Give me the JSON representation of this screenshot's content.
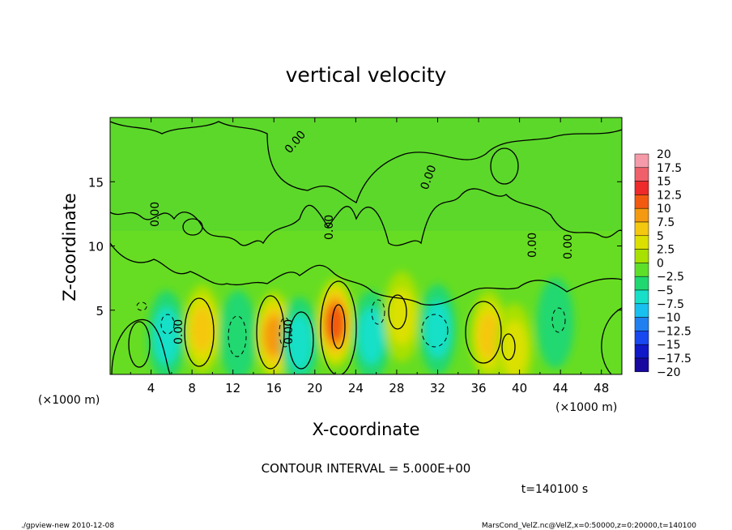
{
  "chart_data": {
    "type": "heatmap",
    "title": "vertical velocity",
    "xlabel": "X-coordinate",
    "ylabel": "Z-coordinate",
    "x_unit_left": "(×1000 m)",
    "x_unit_right": "(×1000 m)",
    "xlim": [
      0,
      50
    ],
    "ylim": [
      0,
      20
    ],
    "xticks": [
      "4",
      "8",
      "12",
      "16",
      "20",
      "24",
      "28",
      "32",
      "36",
      "40",
      "44",
      "48"
    ],
    "yticks": [
      "5",
      "10",
      "15"
    ],
    "contour_label": "0.00",
    "contour_interval_text": "CONTOUR INTERVAL = 5.000E+00",
    "time_text": "t=140100 s",
    "colorbar": {
      "labels": [
        "20",
        "17.5",
        "15",
        "12.5",
        "10",
        "7.5",
        "5",
        "2.5",
        "0",
        "−2.5",
        "−5",
        "−7.5",
        "−10",
        "−12.5",
        "−15",
        "−17.5",
        "−20"
      ],
      "colors": [
        "#f59aa8",
        "#f0606a",
        "#ee2a2a",
        "#f25a10",
        "#f59a10",
        "#f5c810",
        "#dce000",
        "#a8e000",
        "#5ee02a",
        "#20d870",
        "#18e0c8",
        "#18c0f0",
        "#2080f0",
        "#1848f0",
        "#1018c8",
        "#1808a0",
        "#7010b0"
      ]
    },
    "features": [
      {
        "x": 5.5,
        "z": 3.0,
        "value": -6
      },
      {
        "x": 9,
        "z": 3.5,
        "value": 7
      },
      {
        "x": 12.5,
        "z": 3.0,
        "value": -3
      },
      {
        "x": 16,
        "z": 3.0,
        "value": 9
      },
      {
        "x": 18.5,
        "z": 2.5,
        "value": -6
      },
      {
        "x": 22,
        "z": 4.0,
        "value": 13
      },
      {
        "x": 25.5,
        "z": 3.0,
        "value": -4
      },
      {
        "x": 28.5,
        "z": 4.5,
        "value": 5
      },
      {
        "x": 32,
        "z": 3.5,
        "value": -4
      },
      {
        "x": 37,
        "z": 3.0,
        "value": 8
      },
      {
        "x": 39.5,
        "z": 2.0,
        "value": 5
      },
      {
        "x": 43.5,
        "z": 4.0,
        "value": -3
      }
    ]
  },
  "footer": {
    "left": "./gpview-new  2010-12-08",
    "right": "MarsCond_VelZ.nc@VelZ,x=0:50000,z=0:20000,t=140100"
  }
}
